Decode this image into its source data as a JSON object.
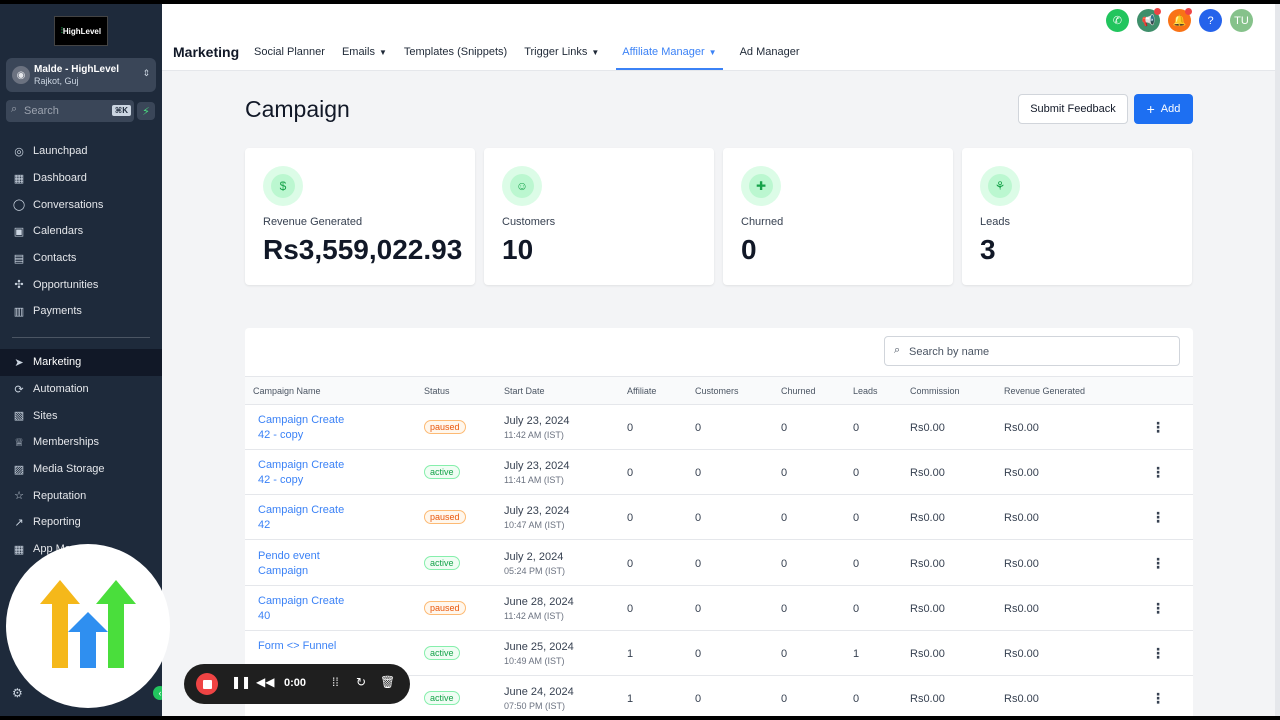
{
  "sidebar": {
    "logo_text": "HighLevel",
    "account": {
      "name": "Malde - HighLevel",
      "location": "Rajkot, Guj"
    },
    "search": {
      "placeholder": "Search",
      "shortcut": "⌘K"
    },
    "items_top": [
      {
        "label": "Launchpad",
        "icon": "rocket-icon"
      },
      {
        "label": "Dashboard",
        "icon": "dashboard-icon"
      },
      {
        "label": "Conversations",
        "icon": "chat-icon"
      },
      {
        "label": "Calendars",
        "icon": "calendar-icon"
      },
      {
        "label": "Contacts",
        "icon": "contacts-icon"
      },
      {
        "label": "Opportunities",
        "icon": "opportunities-icon"
      },
      {
        "label": "Payments",
        "icon": "payments-icon"
      }
    ],
    "items_bottom": [
      {
        "label": "Marketing",
        "icon": "send-icon",
        "active": true
      },
      {
        "label": "Automation",
        "icon": "automation-icon"
      },
      {
        "label": "Sites",
        "icon": "sites-icon"
      },
      {
        "label": "Memberships",
        "icon": "memberships-icon"
      },
      {
        "label": "Media Storage",
        "icon": "media-icon"
      },
      {
        "label": "Reputation",
        "icon": "star-icon"
      },
      {
        "label": "Reporting",
        "icon": "reporting-icon"
      },
      {
        "label": "App Ma",
        "icon": "apps-icon"
      }
    ]
  },
  "header": {
    "section": "Marketing",
    "tabs": [
      {
        "label": "Social Planner",
        "caret": false
      },
      {
        "label": "Emails",
        "caret": true
      },
      {
        "label": "Templates (Snippets)",
        "caret": false
      },
      {
        "label": "Trigger Links",
        "caret": true
      },
      {
        "label": "Affiliate Manager",
        "caret": true,
        "active": true
      },
      {
        "label": "Ad Manager",
        "caret": false
      }
    ],
    "avatar": "TU",
    "colors": {
      "phone": "#22c55e",
      "megaphone": "#3f8f6b",
      "bell": "#f97316",
      "help": "#2563eb",
      "avatar": "#86c28b"
    }
  },
  "page": {
    "title": "Campaign",
    "feedback_label": "Submit Feedback",
    "add_label": "Add"
  },
  "stats": [
    {
      "label": "Revenue Generated",
      "value": "Rs3,559,022.93",
      "icon": "dollar-icon"
    },
    {
      "label": "Customers",
      "value": "10",
      "icon": "user-icon"
    },
    {
      "label": "Churned",
      "value": "0",
      "icon": "user-plus-icon"
    },
    {
      "label": "Leads",
      "value": "3",
      "icon": "funnel-icon"
    }
  ],
  "table": {
    "search_placeholder": "Search by name",
    "headers": [
      "Campaign Name",
      "Status",
      "Start Date",
      "Affiliate",
      "Customers",
      "Churned",
      "Leads",
      "Commission",
      "Revenue Generated"
    ],
    "rows": [
      {
        "name1": "Campaign Create",
        "name2": "42 - copy",
        "status": "paused",
        "date": "July 23, 2024",
        "time": "11:42 AM (IST)",
        "affiliate": "0",
        "customers": "0",
        "churned": "0",
        "leads": "0",
        "commission": "Rs0.00",
        "revenue": "Rs0.00"
      },
      {
        "name1": "Campaign Create",
        "name2": "42 - copy",
        "status": "active",
        "date": "July 23, 2024",
        "time": "11:41 AM (IST)",
        "affiliate": "0",
        "customers": "0",
        "churned": "0",
        "leads": "0",
        "commission": "Rs0.00",
        "revenue": "Rs0.00"
      },
      {
        "name1": "Campaign Create",
        "name2": "42",
        "status": "paused",
        "date": "July 23, 2024",
        "time": "10:47 AM (IST)",
        "affiliate": "0",
        "customers": "0",
        "churned": "0",
        "leads": "0",
        "commission": "Rs0.00",
        "revenue": "Rs0.00"
      },
      {
        "name1": "Pendo event",
        "name2": "Campaign",
        "status": "active",
        "date": "July 2, 2024",
        "time": "05:24 PM (IST)",
        "affiliate": "0",
        "customers": "0",
        "churned": "0",
        "leads": "0",
        "commission": "Rs0.00",
        "revenue": "Rs0.00"
      },
      {
        "name1": "Campaign Create",
        "name2": "40",
        "status": "paused",
        "date": "June 28, 2024",
        "time": "11:42 AM (IST)",
        "affiliate": "0",
        "customers": "0",
        "churned": "0",
        "leads": "0",
        "commission": "Rs0.00",
        "revenue": "Rs0.00"
      },
      {
        "name1": "Form <> Funnel",
        "name2": "",
        "status": "active",
        "date": "June 25, 2024",
        "time": "10:49 AM (IST)",
        "affiliate": "1",
        "customers": "0",
        "churned": "0",
        "leads": "1",
        "commission": "Rs0.00",
        "revenue": "Rs0.00"
      },
      {
        "name1": "",
        "name2": "",
        "status": "active",
        "date": "June 24, 2024",
        "time": "07:50 PM (IST)",
        "affiliate": "1",
        "customers": "0",
        "churned": "0",
        "leads": "0",
        "commission": "Rs0.00",
        "revenue": "Rs0.00"
      }
    ]
  },
  "recorder": {
    "time": "0:00"
  }
}
